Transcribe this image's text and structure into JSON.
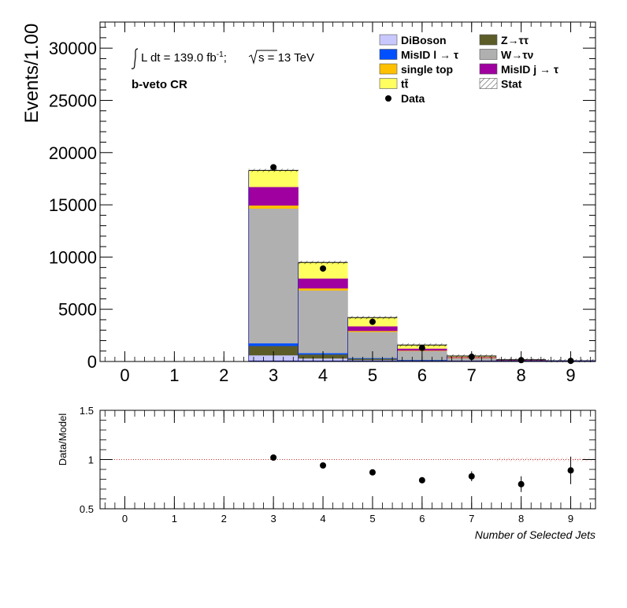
{
  "chart_data": [
    {
      "type": "bar",
      "stacked": true,
      "x_edges": [
        -0.5,
        0.5,
        1.5,
        2.5,
        3.5,
        4.5,
        5.5,
        6.5,
        7.5,
        8.5,
        9.5
      ],
      "ylim": [
        0,
        32500
      ],
      "yticks": [
        0,
        5000,
        10000,
        15000,
        20000,
        25000,
        30000
      ],
      "xticks": [
        0,
        1,
        2,
        3,
        4,
        5,
        6,
        7,
        8,
        9
      ],
      "ylabel": "Events/1.00",
      "annotation_lumi_prefix": "L dt = 139.0 fb",
      "annotation_lumi_exp": "-1",
      "annotation_lumi_sep": ";",
      "annotation_energy": "s = 13 TeV",
      "annotation_region": "b-veto CR",
      "legend_placement": "top-right",
      "legend": [
        {
          "label": "DiBoson",
          "kind": "box",
          "color": "#c8c8ff"
        },
        {
          "label": "Z→ττ",
          "kind": "box",
          "color": "#5c5c29"
        },
        {
          "label": "MisID l → τ",
          "kind": "box",
          "color": "#0050ff"
        },
        {
          "label": "W→τν",
          "kind": "box",
          "color": "#b0b0b0"
        },
        {
          "label": "single top",
          "kind": "box",
          "color": "#ffc000"
        },
        {
          "label": "MisID j → τ",
          "kind": "box",
          "color": "#a000a0"
        },
        {
          "label": "tt̄",
          "kind": "box",
          "color": "#ffff60"
        },
        {
          "label": "Stat",
          "kind": "hatch",
          "color": "#000000"
        },
        {
          "label": "Data",
          "kind": "marker",
          "color": "#000000"
        }
      ],
      "series": [
        {
          "name": "DiBoson",
          "color": "#c8c8ff",
          "values": [
            0,
            0,
            0,
            600,
            300,
            150,
            80,
            40,
            20,
            10
          ]
        },
        {
          "name": "Z→ττ",
          "color": "#5c5c29",
          "values": [
            0,
            0,
            0,
            900,
            380,
            130,
            50,
            20,
            10,
            5
          ]
        },
        {
          "name": "MisID l → τ",
          "color": "#0050ff",
          "values": [
            0,
            0,
            0,
            250,
            130,
            60,
            30,
            15,
            8,
            4
          ]
        },
        {
          "name": "W→τν",
          "color": "#b0b0b0",
          "values": [
            0,
            0,
            0,
            12900,
            6000,
            2500,
            850,
            270,
            80,
            30
          ]
        },
        {
          "name": "single top",
          "color": "#ffc000",
          "values": [
            0,
            0,
            0,
            300,
            200,
            100,
            45,
            15,
            5,
            2
          ]
        },
        {
          "name": "MisID j → τ",
          "color": "#a000a0",
          "values": [
            0,
            0,
            0,
            1750,
            930,
            420,
            170,
            60,
            20,
            8
          ]
        },
        {
          "name": "tt̄",
          "color": "#ffff60",
          "values": [
            0,
            0,
            0,
            1600,
            1540,
            840,
            350,
            110,
            30,
            10
          ]
        }
      ],
      "data_points": [
        {
          "x": 3,
          "y": 18600
        },
        {
          "x": 4,
          "y": 8900
        },
        {
          "x": 5,
          "y": 3800
        },
        {
          "x": 6,
          "y": 1300
        },
        {
          "x": 7,
          "y": 450
        },
        {
          "x": 8,
          "y": 130
        },
        {
          "x": 9,
          "y": 60
        }
      ]
    },
    {
      "type": "scatter",
      "ylim": [
        0.5,
        1.5
      ],
      "yticks": [
        0.5,
        1,
        1.5
      ],
      "ytick_labels": [
        "0.5",
        "1",
        "1.5"
      ],
      "xticks": [
        0,
        1,
        2,
        3,
        4,
        5,
        6,
        7,
        8,
        9
      ],
      "ylabel": "Data/Model",
      "xlabel": "Number of Selected Jets",
      "reference_line": 1,
      "points": [
        {
          "x": 3,
          "y": 1.02,
          "err": 0.008
        },
        {
          "x": 4,
          "y": 0.94,
          "err": 0.012
        },
        {
          "x": 5,
          "y": 0.87,
          "err": 0.018
        },
        {
          "x": 6,
          "y": 0.79,
          "err": 0.03
        },
        {
          "x": 7,
          "y": 0.83,
          "err": 0.05
        },
        {
          "x": 8,
          "y": 0.75,
          "err": 0.08
        },
        {
          "x": 9,
          "y": 0.89,
          "err": 0.14
        }
      ]
    }
  ]
}
